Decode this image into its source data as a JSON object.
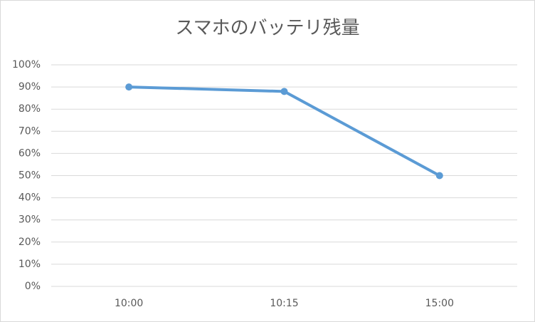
{
  "chart_data": {
    "type": "line",
    "title": "スマホのバッテリ残量",
    "categories": [
      "10:00",
      "10:15",
      "15:00"
    ],
    "values": [
      90,
      88,
      50
    ],
    "color": "#5b9bd5",
    "ylim": [
      0,
      100
    ],
    "yticks": [
      {
        "value": 0,
        "label": "0%"
      },
      {
        "value": 10,
        "label": "10%"
      },
      {
        "value": 20,
        "label": "20%"
      },
      {
        "value": 30,
        "label": "30%"
      },
      {
        "value": 40,
        "label": "40%"
      },
      {
        "value": 50,
        "label": "50%"
      },
      {
        "value": 60,
        "label": "60%"
      },
      {
        "value": 70,
        "label": "70%"
      },
      {
        "value": 80,
        "label": "80%"
      },
      {
        "value": 90,
        "label": "90%"
      },
      {
        "value": 100,
        "label": "100%"
      }
    ],
    "grid": true
  }
}
